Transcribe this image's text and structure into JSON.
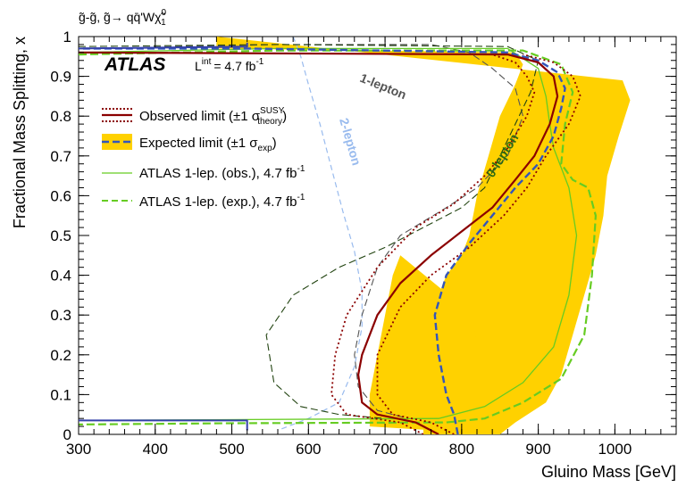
{
  "chart_data": {
    "type": "line",
    "process_label": "g̃-g̃, g̃→ qq̄'Wχ̃",
    "process_sup": "0",
    "process_sub": "1",
    "experiment": "ATLAS",
    "lumi_prefix": "L",
    "lumi_sup": "int",
    "lumi_value": "= 4.7 fb",
    "lumi_unit_sup": "-1",
    "xlabel": "Gluino Mass [GeV]",
    "ylabel": "Fractional Mass Splitting, x",
    "xlim": [
      300,
      1080
    ],
    "ylim": [
      0,
      1
    ],
    "x_ticks": [
      300,
      400,
      500,
      600,
      700,
      800,
      900,
      1000
    ],
    "y_ticks": [
      0,
      0.1,
      0.2,
      0.3,
      0.4,
      0.5,
      0.6,
      0.7,
      0.8,
      0.9,
      1
    ],
    "y_tick_labels": [
      "0",
      "0.1",
      "0.2",
      "0.3",
      "0.4",
      "0.5",
      "0.6",
      "0.7",
      "0.8",
      "0.9",
      "1"
    ],
    "legend": [
      {
        "key": "obs",
        "text": "Observed limit (±1 σ",
        "sup": "SUSY",
        "sub": "theory",
        "tail": ")"
      },
      {
        "key": "exp",
        "text": "Expected limit (±1 σ",
        "sub": "exp",
        "tail": ")"
      },
      {
        "key": "atlas1obs",
        "text": "ATLAS 1-lep. (obs.), 4.7 fb",
        "sup": "-1"
      },
      {
        "key": "atlas1exp",
        "text": "ATLAS 1-lep. (exp.), 4.7 fb",
        "sup": "-1"
      }
    ],
    "curve_labels": {
      "one_lepton": "1-lepton",
      "two_lepton": "2-lepton",
      "zero_lepton": "0-lepton"
    },
    "colors": {
      "observed": "#8b0000",
      "expected": "#3355bb",
      "band": "#ffd100",
      "atlas1": "#66cc22",
      "one_lepton": "#555555",
      "two_lepton": "#99bbee",
      "zero_lepton_obs": "#224411",
      "zero_lepton_label": "#2d6b12",
      "blue_lowx": "#3340aa"
    },
    "series": {
      "expected_band": {
        "name": "Expected limit (±1 σexp)",
        "upper": [
          [
            480,
            1.0
          ],
          [
            1010,
            0.89
          ],
          [
            1020,
            0.84
          ],
          [
            1005,
            0.75
          ],
          [
            990,
            0.65
          ],
          [
            985,
            0.55
          ],
          [
            975,
            0.45
          ],
          [
            960,
            0.35
          ],
          [
            945,
            0.25
          ],
          [
            930,
            0.15
          ],
          [
            910,
            0.08
          ],
          [
            870,
            0.03
          ],
          [
            850,
            0.0
          ]
        ],
        "lower": [
          [
            480,
            0.97
          ],
          [
            870,
            0.96
          ],
          [
            880,
            0.93
          ],
          [
            870,
            0.88
          ],
          [
            850,
            0.8
          ],
          [
            835,
            0.7
          ],
          [
            820,
            0.6
          ],
          [
            810,
            0.5
          ],
          [
            800,
            0.45
          ],
          [
            780,
            0.4
          ],
          [
            770,
            0.35
          ],
          [
            765,
            0.3
          ],
          [
            760,
            0.2
          ],
          [
            755,
            0.1
          ],
          [
            750,
            0.05
          ],
          [
            750,
            0.0
          ]
        ],
        "lowx_upper": [
          [
            850,
            0.0
          ],
          [
            820,
            0.0
          ],
          [
            820,
            0.1
          ],
          [
            820,
            0.2
          ],
          [
            815,
            0.3
          ]
        ],
        "lowx_lower": [
          [
            680,
            0.02
          ],
          [
            680,
            0.1
          ],
          [
            690,
            0.2
          ],
          [
            700,
            0.3
          ],
          [
            710,
            0.4
          ],
          [
            720,
            0.45
          ]
        ]
      },
      "expected": {
        "name": "Expected limit",
        "points": [
          [
            795,
            0.0
          ],
          [
            790,
            0.05
          ],
          [
            780,
            0.1
          ],
          [
            770,
            0.2
          ],
          [
            765,
            0.3
          ],
          [
            780,
            0.4
          ],
          [
            810,
            0.48
          ],
          [
            840,
            0.55
          ],
          [
            870,
            0.62
          ],
          [
            900,
            0.68
          ],
          [
            920,
            0.75
          ],
          [
            930,
            0.82
          ],
          [
            935,
            0.87
          ],
          [
            925,
            0.91
          ],
          [
            900,
            0.94
          ],
          [
            860,
            0.96
          ],
          [
            520,
            0.97
          ],
          [
            300,
            0.97
          ]
        ]
      },
      "observed": {
        "name": "Observed limit",
        "points": [
          [
            770,
            0.0
          ],
          [
            740,
            0.03
          ],
          [
            690,
            0.05
          ],
          [
            670,
            0.08
          ],
          [
            665,
            0.15
          ],
          [
            670,
            0.2
          ],
          [
            690,
            0.3
          ],
          [
            720,
            0.38
          ],
          [
            760,
            0.45
          ],
          [
            800,
            0.51
          ],
          [
            840,
            0.57
          ],
          [
            870,
            0.64
          ],
          [
            895,
            0.7
          ],
          [
            915,
            0.78
          ],
          [
            925,
            0.85
          ],
          [
            920,
            0.9
          ],
          [
            900,
            0.935
          ],
          [
            860,
            0.955
          ],
          [
            300,
            0.96
          ]
        ]
      },
      "observed_theory_up": {
        "name": "Observed +1σ theory",
        "points": [
          [
            790,
            0.0
          ],
          [
            760,
            0.03
          ],
          [
            710,
            0.05
          ],
          [
            690,
            0.1
          ],
          [
            690,
            0.2
          ],
          [
            720,
            0.32
          ],
          [
            760,
            0.4
          ],
          [
            810,
            0.47
          ],
          [
            855,
            0.55
          ],
          [
            885,
            0.62
          ],
          [
            910,
            0.7
          ],
          [
            940,
            0.78
          ],
          [
            955,
            0.85
          ],
          [
            945,
            0.9
          ],
          [
            920,
            0.935
          ],
          [
            880,
            0.955
          ]
        ]
      },
      "observed_theory_down": {
        "name": "Observed -1σ theory",
        "points": [
          [
            750,
            0.0
          ],
          [
            720,
            0.03
          ],
          [
            650,
            0.05
          ],
          [
            630,
            0.1
          ],
          [
            635,
            0.2
          ],
          [
            650,
            0.3
          ],
          [
            690,
            0.42
          ],
          [
            740,
            0.52
          ],
          [
            790,
            0.58
          ],
          [
            830,
            0.65
          ],
          [
            860,
            0.72
          ],
          [
            885,
            0.8
          ],
          [
            895,
            0.86
          ],
          [
            885,
            0.9
          ],
          [
            870,
            0.935
          ],
          [
            840,
            0.955
          ]
        ]
      },
      "atlas1_obs": {
        "name": "ATLAS 1-lep. (obs.), 4.7 fb-1",
        "points": [
          [
            300,
            0.96
          ],
          [
            560,
            0.97
          ],
          [
            860,
            0.97
          ],
          [
            900,
            0.92
          ],
          [
            910,
            0.85
          ],
          [
            915,
            0.78
          ],
          [
            920,
            0.72
          ],
          [
            940,
            0.62
          ],
          [
            950,
            0.5
          ],
          [
            940,
            0.35
          ],
          [
            920,
            0.22
          ],
          [
            880,
            0.13
          ],
          [
            830,
            0.07
          ],
          [
            770,
            0.04
          ],
          [
            300,
            0.035
          ]
        ]
      },
      "atlas1_exp": {
        "name": "ATLAS 1-lep. (exp.), 4.7 fb-1",
        "points": [
          [
            300,
            0.955
          ],
          [
            560,
            0.965
          ],
          [
            880,
            0.965
          ],
          [
            930,
            0.93
          ],
          [
            945,
            0.86
          ],
          [
            935,
            0.78
          ],
          [
            930,
            0.68
          ],
          [
            945,
            0.64
          ],
          [
            965,
            0.62
          ],
          [
            975,
            0.55
          ],
          [
            970,
            0.4
          ],
          [
            960,
            0.25
          ],
          [
            930,
            0.14
          ],
          [
            880,
            0.08
          ],
          [
            830,
            0.04
          ],
          [
            780,
            0.03
          ],
          [
            500,
            0.028
          ],
          [
            300,
            0.025
          ]
        ]
      },
      "one_lepton": {
        "name": "1-lepton",
        "points": [
          [
            300,
            0.97
          ],
          [
            560,
            0.98
          ],
          [
            760,
            0.98
          ],
          [
            810,
            0.96
          ],
          [
            840,
            0.92
          ],
          [
            870,
            0.87
          ],
          [
            880,
            0.8
          ],
          [
            860,
            0.7
          ],
          [
            820,
            0.62
          ],
          [
            780,
            0.57
          ],
          [
            720,
            0.5
          ],
          [
            690,
            0.42
          ],
          [
            670,
            0.3
          ],
          [
            660,
            0.2
          ],
          [
            665,
            0.12
          ],
          [
            690,
            0.06
          ],
          [
            730,
            0.04
          ]
        ]
      },
      "two_lepton": {
        "name": "2-lepton",
        "points": [
          [
            580,
            1.0
          ],
          [
            590,
            0.95
          ],
          [
            600,
            0.88
          ],
          [
            615,
            0.78
          ],
          [
            630,
            0.67
          ],
          [
            645,
            0.56
          ],
          [
            660,
            0.46
          ],
          [
            670,
            0.36
          ],
          [
            670,
            0.27
          ],
          [
            660,
            0.17
          ],
          [
            640,
            0.08
          ],
          [
            600,
            0.04
          ],
          [
            560,
            0.01
          ]
        ]
      },
      "zero_lepton_obs": {
        "name": "0-lepton (obs.)",
        "points": [
          [
            300,
            0.975
          ],
          [
            560,
            0.98
          ],
          [
            860,
            0.975
          ],
          [
            900,
            0.94
          ],
          [
            890,
            0.86
          ],
          [
            860,
            0.74
          ],
          [
            830,
            0.62
          ],
          [
            800,
            0.57
          ],
          [
            760,
            0.53
          ],
          [
            700,
            0.47
          ],
          [
            640,
            0.42
          ],
          [
            580,
            0.35
          ],
          [
            545,
            0.25
          ],
          [
            555,
            0.13
          ],
          [
            590,
            0.07
          ],
          [
            640,
            0.05
          ],
          [
            700,
            0.04
          ]
        ]
      },
      "blue_lowx": {
        "name": "low-x boundary",
        "points": [
          [
            300,
            0.035
          ],
          [
            520,
            0.035
          ],
          [
            520,
            0.01
          ]
        ]
      },
      "blue_highx": {
        "name": "high-x boundary",
        "points": [
          [
            300,
            0.97
          ],
          [
            520,
            0.975
          ],
          [
            520,
            0.985
          ]
        ]
      }
    }
  }
}
